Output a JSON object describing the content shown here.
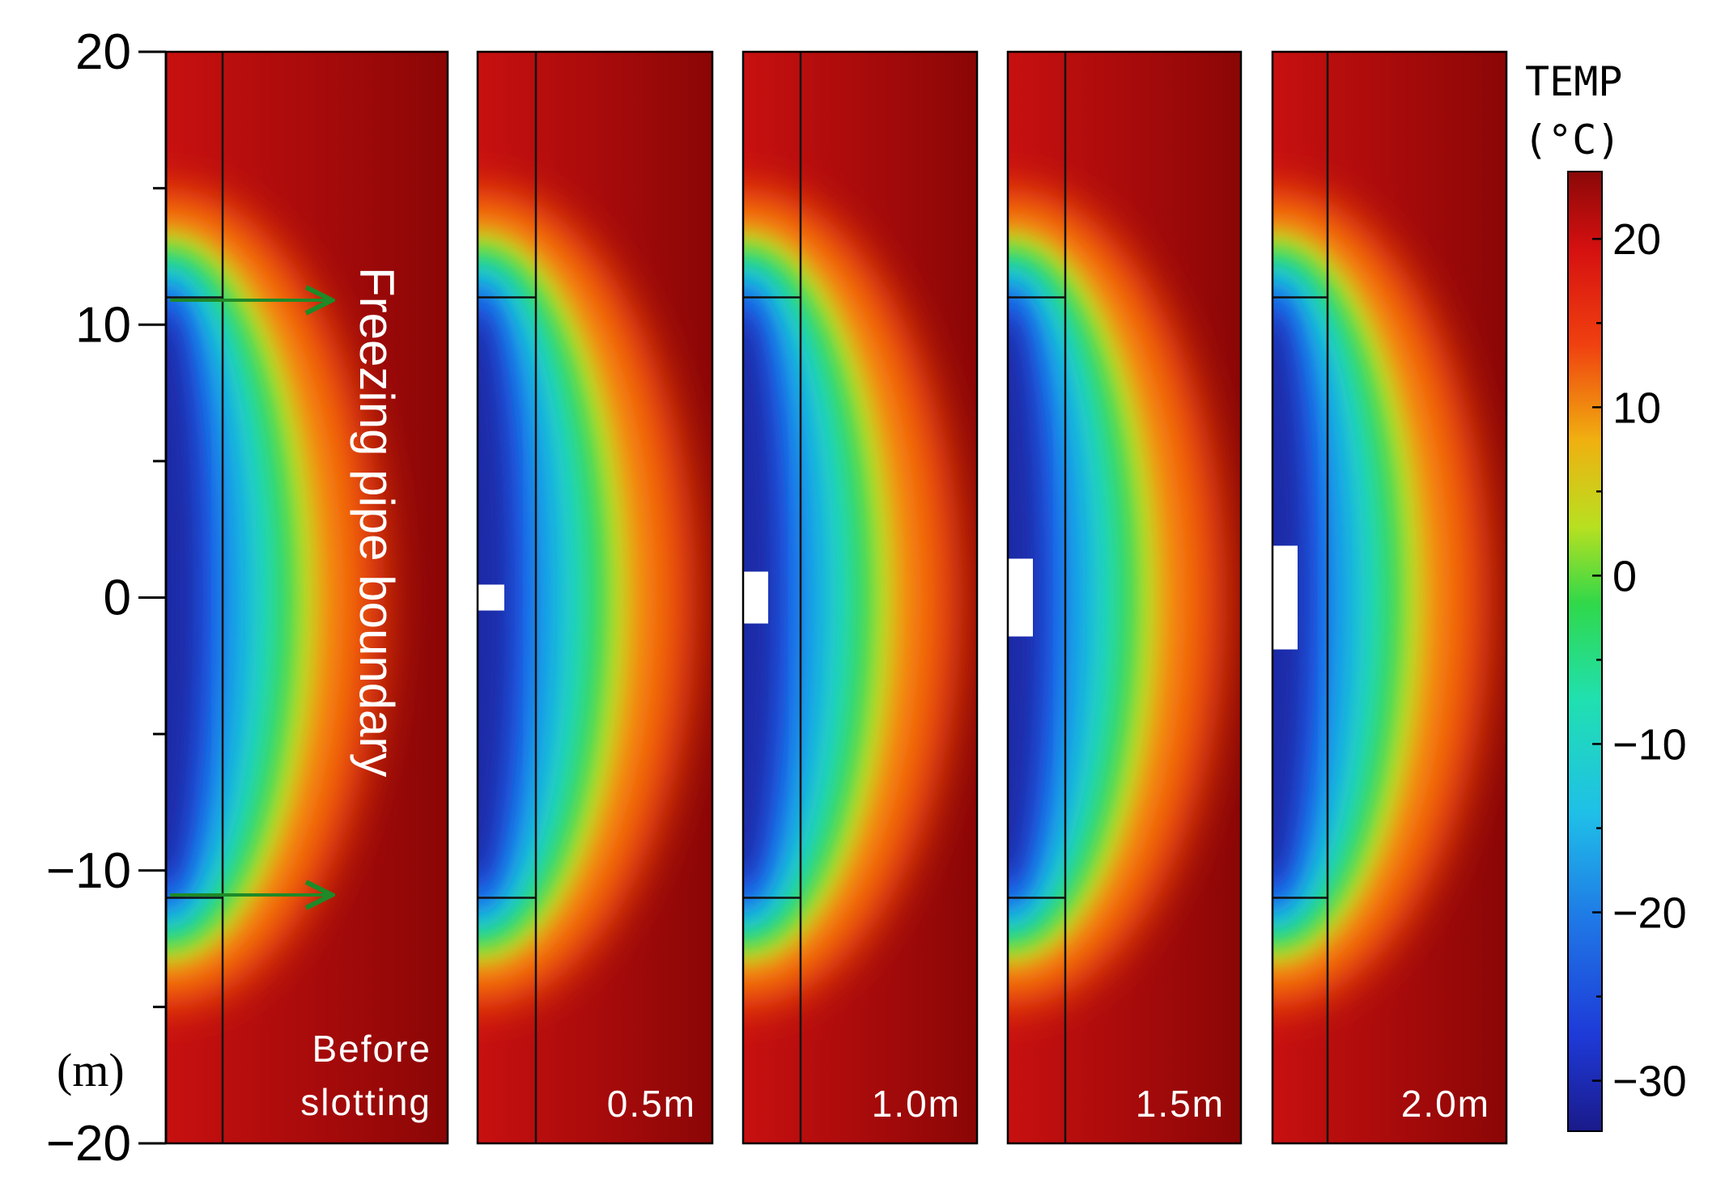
{
  "chart_data": {
    "type": "heatmap",
    "y_unit_label": "(m)",
    "ylim": [
      -20,
      20
    ],
    "y_ticks": [
      20,
      10,
      0,
      -10,
      -20
    ],
    "y_tick_labels": [
      "20",
      "10",
      "0",
      "−10",
      "−20"
    ],
    "freezing_pipe_boundary_depths": [
      11,
      -11
    ],
    "annotation": "Freezing pipe boundary",
    "panels": [
      {
        "label": "Before\nslotting",
        "slot_height_m": 0
      },
      {
        "label": "0.5m",
        "slot_height_m": 0.5
      },
      {
        "label": "1.0m",
        "slot_height_m": 1.0
      },
      {
        "label": "1.5m",
        "slot_height_m": 1.5
      },
      {
        "label": "2.0m",
        "slot_height_m": 2.0
      }
    ],
    "colorbar": {
      "title_line1": "TEMP",
      "title_line2": "(°C)",
      "range": [
        -33,
        24
      ],
      "ticks": [
        20,
        10,
        0,
        -10,
        -20,
        -30
      ],
      "tick_labels": [
        "20",
        "10",
        "0",
        "−10",
        "−20",
        "−30"
      ],
      "colormap": "jet"
    }
  }
}
